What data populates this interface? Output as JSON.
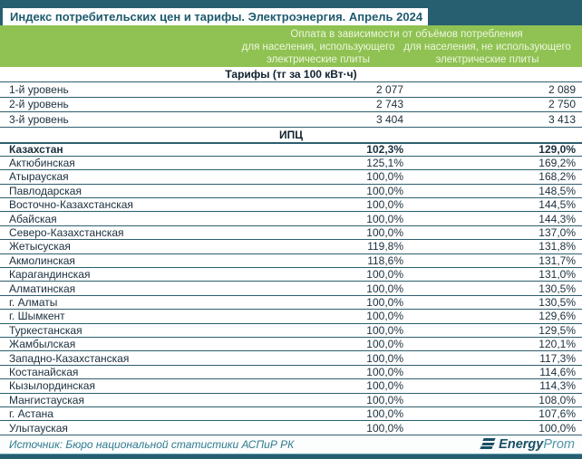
{
  "chart_data": {
    "type": "table",
    "title": "Индекс потребительских цен и тарифы. Электроэнергия. Апрель 2024",
    "col_group_label": "Оплата в зависимости от объёмов потребления",
    "columns": [
      "",
      "для населения, использующего электрические плиты",
      "для населения, не использующего электрические плиты"
    ],
    "sections": [
      {
        "label": "Тарифы (тг за 100 кВт·ч)",
        "rows": [
          {
            "name": "1-й уровень",
            "v1": "2 077",
            "v2": "2 089"
          },
          {
            "name": "2-й уровень",
            "v1": "2 743",
            "v2": "2 750"
          },
          {
            "name": "3-й уровень",
            "v1": "3 404",
            "v2": "3 413"
          }
        ]
      },
      {
        "label": "ИПЦ",
        "rows": [
          {
            "name": "Казахстан",
            "v1": "102,3%",
            "v2": "129,0%"
          },
          {
            "name": "Актюбинская",
            "v1": "125,1%",
            "v2": "169,2%"
          },
          {
            "name": "Атырауская",
            "v1": "100,0%",
            "v2": "168,2%"
          },
          {
            "name": "Павлодарская",
            "v1": "100,0%",
            "v2": "148,5%"
          },
          {
            "name": "Восточно-Казахстанская",
            "v1": "100,0%",
            "v2": "144,5%"
          },
          {
            "name": "Абайская",
            "v1": "100,0%",
            "v2": "144,3%"
          },
          {
            "name": "Северо-Казахстанская",
            "v1": "100,0%",
            "v2": "137,0%"
          },
          {
            "name": "Жетысуская",
            "v1": "119,8%",
            "v2": "131,8%"
          },
          {
            "name": "Акмолинская",
            "v1": "118,6%",
            "v2": "131,7%"
          },
          {
            "name": "Карагандинская",
            "v1": "100,0%",
            "v2": "131,0%"
          },
          {
            "name": "Алматинская",
            "v1": "100,0%",
            "v2": "130,5%"
          },
          {
            "name": "г. Алматы",
            "v1": "100,0%",
            "v2": "130,5%"
          },
          {
            "name": "г. Шымкент",
            "v1": "100,0%",
            "v2": "129,6%"
          },
          {
            "name": "Туркестанская",
            "v1": "100,0%",
            "v2": "129,5%"
          },
          {
            "name": "Жамбылская",
            "v1": "100,0%",
            "v2": "120,1%"
          },
          {
            "name": "Западно-Казахстанская",
            "v1": "100,0%",
            "v2": "117,3%"
          },
          {
            "name": "Костанайская",
            "v1": "100,0%",
            "v2": "114,6%"
          },
          {
            "name": "Кызылординская",
            "v1": "100,0%",
            "v2": "114,3%"
          },
          {
            "name": "Мангистауская",
            "v1": "100,0%",
            "v2": "108,0%"
          },
          {
            "name": "г. Астана",
            "v1": "100,0%",
            "v2": "107,6%"
          },
          {
            "name": "Улытауская",
            "v1": "100,0%",
            "v2": "100,0%"
          }
        ]
      }
    ]
  },
  "footer": {
    "source": "Источник: Бюро национальной статистики АСПиР РК",
    "logo_energy": "Energy",
    "logo_prom": "Prom"
  },
  "colors": {
    "header_teal": "#275e70",
    "band_green": "#8fc253",
    "row_line": "#2d5f6f",
    "source_teal": "#2e7b8e",
    "logo_dark": "#174f63",
    "logo_light": "#5095a8"
  }
}
